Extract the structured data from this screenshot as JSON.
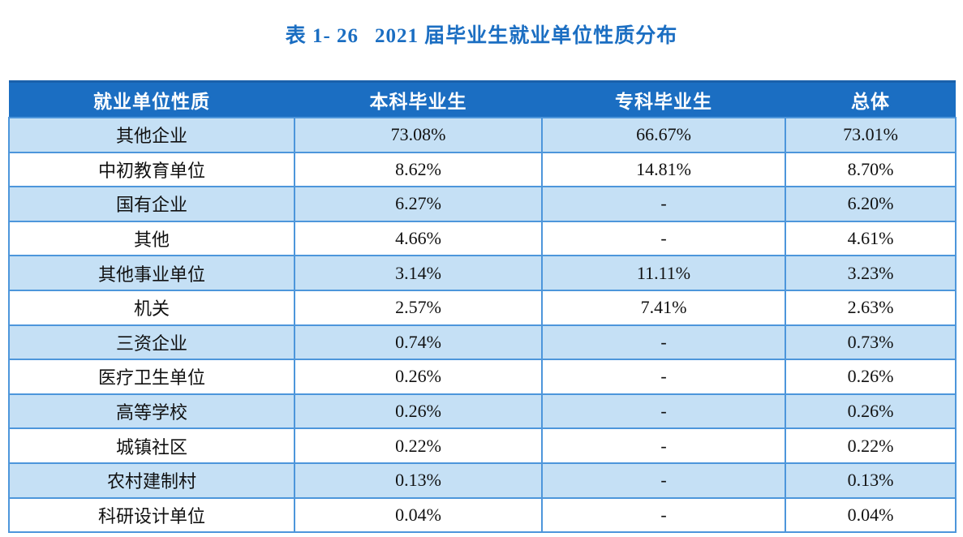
{
  "title": {
    "label": "表 1- 26",
    "text": "2021 届毕业生就业单位性质分布"
  },
  "colors": {
    "title": "#1B6EC2",
    "header_bg": "#1B6EC2",
    "header_text": "#FFFFFF",
    "row_alt_bg": "#C5E0F5",
    "row_bg": "#FFFFFF",
    "grid_line": "#4D96DB",
    "body_text": "#111111"
  },
  "table": {
    "headers": [
      "就业单位性质",
      "本科毕业生",
      "专科毕业生",
      "总体"
    ],
    "rows": [
      [
        "其他企业",
        "73.08%",
        "66.67%",
        "73.01%"
      ],
      [
        "中初教育单位",
        "8.62%",
        "14.81%",
        "8.70%"
      ],
      [
        "国有企业",
        "6.27%",
        "-",
        "6.20%"
      ],
      [
        "其他",
        "4.66%",
        "-",
        "4.61%"
      ],
      [
        "其他事业单位",
        "3.14%",
        "11.11%",
        "3.23%"
      ],
      [
        "机关",
        "2.57%",
        "7.41%",
        "2.63%"
      ],
      [
        "三资企业",
        "0.74%",
        "-",
        "0.73%"
      ],
      [
        "医疗卫生单位",
        "0.26%",
        "-",
        "0.26%"
      ],
      [
        "高等学校",
        "0.26%",
        "-",
        "0.26%"
      ],
      [
        "城镇社区",
        "0.22%",
        "-",
        "0.22%"
      ],
      [
        "农村建制村",
        "0.13%",
        "-",
        "0.13%"
      ],
      [
        "科研设计单位",
        "0.04%",
        "-",
        "0.04%"
      ]
    ]
  }
}
